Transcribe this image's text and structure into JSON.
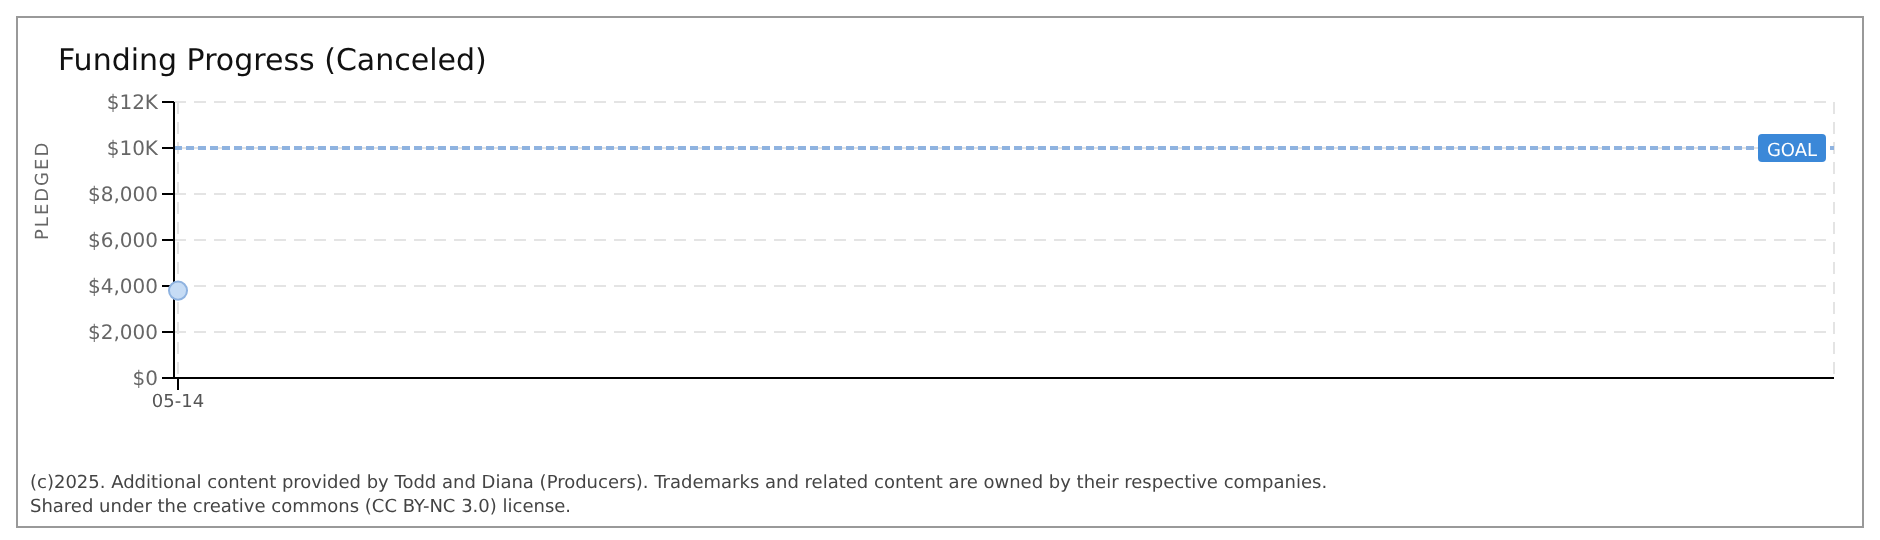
{
  "chart_data": {
    "type": "scatter",
    "title": "Funding Progress (Canceled)",
    "ylabel": "PLEDGED",
    "categories": [
      "05-14"
    ],
    "series": [
      {
        "color": "#c6dcf5",
        "values": [
          3800
        ]
      }
    ],
    "ylim": [
      0,
      12000
    ],
    "yticks": [
      {
        "value": 0,
        "label": "$0"
      },
      {
        "value": 2000,
        "label": "$2,000"
      },
      {
        "value": 4000,
        "label": "$4,000"
      },
      {
        "value": 6000,
        "label": "$6,000"
      },
      {
        "value": 8000,
        "label": "$8,000"
      },
      {
        "value": 10000,
        "label": "$10K"
      },
      {
        "value": 12000,
        "label": "$12K"
      }
    ],
    "ref_lines": [
      {
        "axis": "y",
        "value": 10000,
        "label": "GOAL",
        "color": "#8fb3e0",
        "line_style": "dotted"
      }
    ],
    "grid": true,
    "marker": "circle",
    "annotations": [
      "(c)2025. Additional content provided by Todd and Diana (Producers). Trademarks and related content are owned by their respective companies.",
      "Shared under the creative commons (CC BY-NC 3.0) license."
    ]
  }
}
